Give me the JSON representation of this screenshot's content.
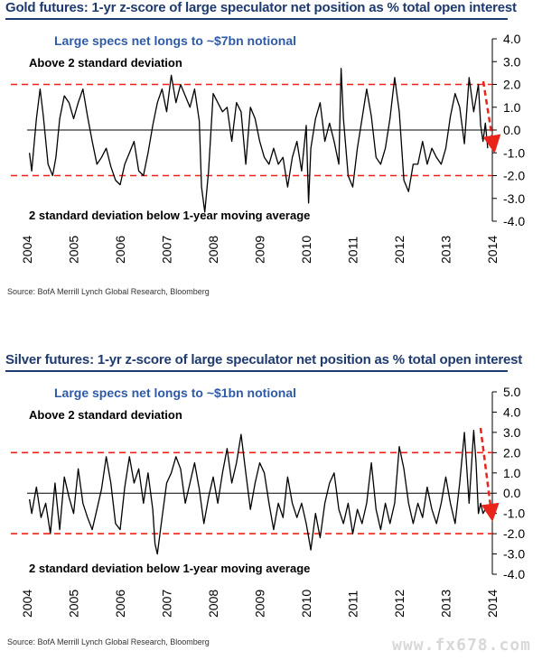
{
  "watermark": "www.fx678.com",
  "charts": [
    {
      "title": "Gold futures: 1-yr z-score of large speculator net position as % total open interest",
      "source": "Source: BofA Merrill Lynch Global Research, Bloomberg",
      "notional": "Large specs net longs to ~$7bn notional",
      "upper_label": "Above 2 standard deviation",
      "lower_label": "2 standard deviation below 1-year moving average"
    },
    {
      "title": "Silver futures: 1-yr z-score of large speculator net position as % total open interest",
      "source": "Source: BofA Merrill Lynch Global Research, Bloomberg",
      "notional": "Large specs net longs to ~$1bn notional",
      "upper_label": "Above 2 standard deviation",
      "lower_label": "2 standard deviation below 1-year moving average"
    }
  ],
  "chart_data": [
    {
      "type": "line",
      "title": "Gold futures: 1-yr z-score of large speculator net position as % total open interest",
      "ylim": [
        -4.0,
        4.0
      ],
      "yticks": [
        "4.0",
        "3.0",
        "2.0",
        "1.0",
        "0.0",
        "-1.0",
        "-2.0",
        "-3.0",
        "-4.0"
      ],
      "xlim": [
        2004,
        2014
      ],
      "xticks": [
        "2004",
        "2005",
        "2006",
        "2007",
        "2008",
        "2009",
        "2010",
        "2011",
        "2012",
        "2013",
        "2014"
      ],
      "thresholds": [
        2.0,
        -2.0
      ],
      "series": [
        {
          "name": "Gold z-score",
          "x": [
            2004.05,
            2004.1,
            2004.2,
            2004.28,
            2004.35,
            2004.45,
            2004.55,
            2004.62,
            2004.7,
            2004.8,
            2004.9,
            2005.0,
            2005.1,
            2005.2,
            2005.3,
            2005.4,
            2005.5,
            2005.6,
            2005.7,
            2005.8,
            2005.9,
            2006.0,
            2006.1,
            2006.2,
            2006.3,
            2006.4,
            2006.5,
            2006.6,
            2006.7,
            2006.8,
            2006.9,
            2007.0,
            2007.1,
            2007.2,
            2007.3,
            2007.4,
            2007.5,
            2007.6,
            2007.7,
            2007.75,
            2007.82,
            2007.9,
            2008.0,
            2008.1,
            2008.2,
            2008.3,
            2008.4,
            2008.5,
            2008.6,
            2008.7,
            2008.8,
            2008.9,
            2009.0,
            2009.1,
            2009.2,
            2009.3,
            2009.4,
            2009.5,
            2009.6,
            2009.7,
            2009.8,
            2009.9,
            2010.0,
            2010.05,
            2010.1,
            2010.2,
            2010.3,
            2010.4,
            2010.5,
            2010.6,
            2010.7,
            2010.75,
            2010.8,
            2010.9,
            2011.0,
            2011.1,
            2011.2,
            2011.3,
            2011.4,
            2011.5,
            2011.6,
            2011.7,
            2011.8,
            2011.9,
            2012.0,
            2012.1,
            2012.2,
            2012.3,
            2012.4,
            2012.5,
            2012.6,
            2012.7,
            2012.8,
            2012.9,
            2013.0,
            2013.1,
            2013.2,
            2013.3,
            2013.4,
            2013.5,
            2013.6,
            2013.7,
            2013.75,
            2013.8,
            2013.85,
            2013.9
          ],
          "values": [
            -1.0,
            -1.8,
            0.5,
            1.8,
            0.6,
            -1.5,
            -2.0,
            -1.2,
            0.5,
            1.5,
            1.2,
            0.5,
            1.2,
            1.8,
            0.6,
            -0.5,
            -1.5,
            -1.2,
            -0.8,
            -1.6,
            -2.2,
            -2.4,
            -1.5,
            -1.0,
            -0.5,
            -1.8,
            -2.0,
            -1.0,
            0.2,
            1.2,
            1.8,
            0.8,
            2.4,
            1.2,
            2.0,
            1.5,
            1.0,
            1.8,
            0.4,
            -2.5,
            -3.6,
            -1.8,
            1.6,
            1.2,
            0.8,
            1.0,
            -0.5,
            1.2,
            0.8,
            -1.5,
            1.0,
            0.5,
            -0.5,
            -1.2,
            -1.5,
            -0.8,
            -1.5,
            -1.2,
            -2.5,
            -1.2,
            -0.5,
            -1.8,
            0.2,
            -3.2,
            -0.8,
            0.5,
            1.2,
            -0.5,
            0.3,
            -0.5,
            -1.5,
            2.7,
            0.5,
            -2.0,
            -2.5,
            -0.8,
            0.5,
            1.8,
            0.6,
            -1.2,
            -1.5,
            -0.8,
            0.5,
            2.3,
            0.8,
            -2.2,
            -2.7,
            -1.5,
            -1.5,
            -0.5,
            -1.5,
            -0.8,
            -1.2,
            -1.5,
            -0.8,
            0.6,
            1.6,
            1.0,
            -0.6,
            2.3,
            0.8,
            2.0,
            0.2,
            -0.5,
            0.3,
            -0.8
          ]
        }
      ]
    },
    {
      "type": "line",
      "title": "Silver futures: 1-yr z-score of large speculator net position as % total open interest",
      "ylim": [
        -4.0,
        5.0
      ],
      "yticks": [
        "5.0",
        "4.0",
        "3.0",
        "2.0",
        "1.0",
        "0.0",
        "-1.0",
        "-2.0",
        "-3.0",
        "-4.0"
      ],
      "xlim": [
        2004,
        2014
      ],
      "xticks": [
        "2004",
        "2005",
        "2006",
        "2007",
        "2008",
        "2009",
        "2010",
        "2011",
        "2012",
        "2013",
        "2014"
      ],
      "thresholds": [
        2.0,
        -2.0
      ],
      "series": [
        {
          "name": "Silver z-score",
          "x": [
            2004.05,
            2004.1,
            2004.2,
            2004.3,
            2004.4,
            2004.5,
            2004.6,
            2004.7,
            2004.8,
            2004.9,
            2005.0,
            2005.1,
            2005.2,
            2005.3,
            2005.4,
            2005.5,
            2005.6,
            2005.7,
            2005.8,
            2005.9,
            2006.0,
            2006.1,
            2006.2,
            2006.3,
            2006.4,
            2006.5,
            2006.6,
            2006.7,
            2006.75,
            2006.8,
            2006.9,
            2007.0,
            2007.1,
            2007.2,
            2007.3,
            2007.4,
            2007.5,
            2007.6,
            2007.7,
            2007.8,
            2007.9,
            2008.0,
            2008.1,
            2008.2,
            2008.3,
            2008.4,
            2008.5,
            2008.6,
            2008.7,
            2008.8,
            2008.9,
            2009.0,
            2009.1,
            2009.2,
            2009.3,
            2009.4,
            2009.5,
            2009.6,
            2009.7,
            2009.8,
            2009.9,
            2010.0,
            2010.1,
            2010.2,
            2010.3,
            2010.4,
            2010.5,
            2010.6,
            2010.7,
            2010.8,
            2010.9,
            2011.0,
            2011.1,
            2011.2,
            2011.3,
            2011.4,
            2011.5,
            2011.6,
            2011.7,
            2011.8,
            2011.9,
            2012.0,
            2012.1,
            2012.2,
            2012.3,
            2012.4,
            2012.5,
            2012.6,
            2012.7,
            2012.8,
            2012.9,
            2013.0,
            2013.1,
            2013.2,
            2013.3,
            2013.4,
            2013.5,
            2013.6,
            2013.65,
            2013.7,
            2013.75,
            2013.8,
            2013.85,
            2013.9
          ],
          "values": [
            -0.3,
            -1.0,
            0.3,
            -1.2,
            -0.5,
            -2.0,
            0.5,
            -1.8,
            0.8,
            -0.2,
            -1.0,
            1.2,
            -0.5,
            -1.2,
            -1.8,
            -0.8,
            0.2,
            1.8,
            0.5,
            -1.5,
            -1.8,
            0.3,
            1.8,
            0.5,
            1.2,
            -0.5,
            1.0,
            -0.8,
            -2.5,
            -3.0,
            -1.2,
            0.5,
            1.0,
            1.8,
            1.2,
            -0.5,
            0.5,
            1.5,
            0.2,
            -1.5,
            -0.2,
            0.8,
            -0.5,
            1.0,
            2.2,
            0.5,
            1.5,
            2.9,
            1.0,
            -0.8,
            0.5,
            1.5,
            1.0,
            -0.5,
            -1.8,
            -0.5,
            -1.2,
            0.8,
            -0.5,
            -1.2,
            -0.5,
            -1.5,
            -2.8,
            -1.0,
            -2.2,
            -0.5,
            0.5,
            1.0,
            -0.8,
            -1.5,
            -0.5,
            -2.0,
            -0.8,
            -1.5,
            -0.5,
            1.5,
            -0.8,
            -1.8,
            -0.5,
            -1.5,
            -0.5,
            2.3,
            1.2,
            -0.5,
            -1.5,
            -0.5,
            -1.2,
            0.3,
            -0.8,
            -1.5,
            -0.5,
            0.8,
            -0.5,
            -1.5,
            0.5,
            3.0,
            -0.5,
            3.1,
            1.5,
            -1.0,
            -0.5,
            -1.0,
            -0.8,
            -1.0
          ]
        }
      ]
    }
  ]
}
